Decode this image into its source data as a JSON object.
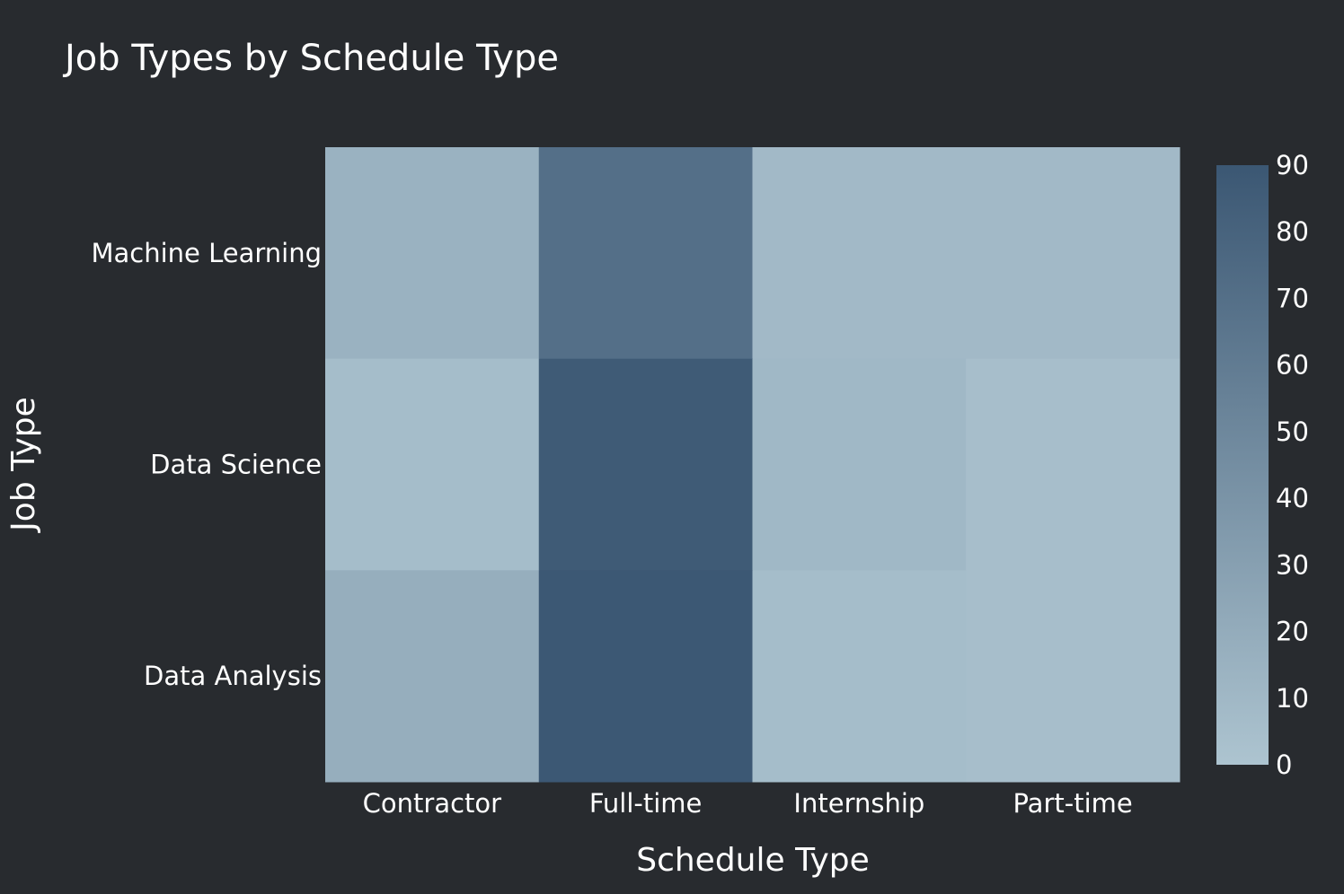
{
  "chart_data": {
    "type": "heatmap",
    "title": "Job Types by Schedule Type",
    "xlabel": "Schedule Type",
    "ylabel": "Job Type",
    "x_categories": [
      "Contractor",
      "Full-time",
      "Internship",
      "Part-time"
    ],
    "y_categories": [
      "Machine Learning",
      "Data Science",
      "Data Analysis"
    ],
    "z": [
      [
        15,
        70,
        9,
        9
      ],
      [
        6,
        87,
        10,
        5
      ],
      [
        18,
        89,
        6,
        5
      ]
    ],
    "zlim": [
      0,
      90
    ],
    "colorbar": {
      "ticks": [
        0,
        10,
        20,
        30,
        40,
        50,
        60,
        70,
        80,
        90
      ],
      "colors": [
        "#adc4d0",
        "#3b5773"
      ]
    },
    "grid": false,
    "colors": {
      "background": "#282b2f",
      "text": "#ffffff"
    }
  }
}
